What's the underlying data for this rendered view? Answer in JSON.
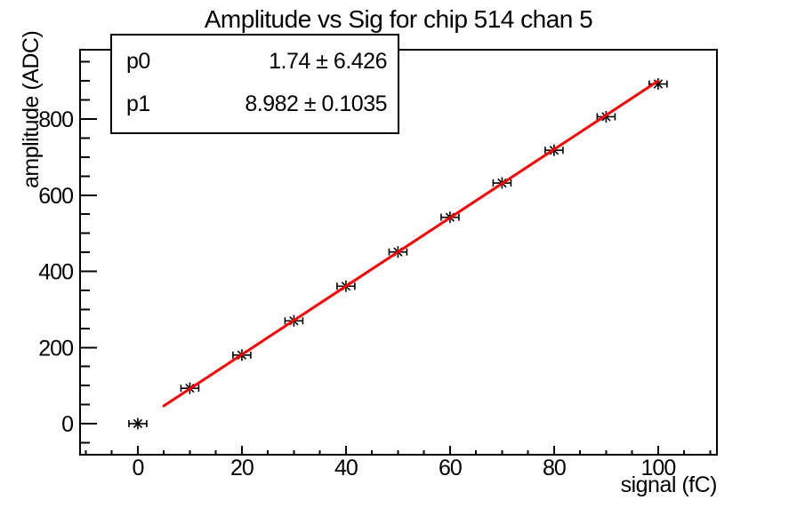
{
  "chart_data": {
    "type": "scatter",
    "title": "Amplitude vs Sig for chip 514 chan 5",
    "xlabel": "signal (fC)",
    "ylabel": "amplitude (ADC)",
    "x": [
      0,
      10,
      20,
      30,
      40,
      50,
      60,
      70,
      80,
      90,
      100
    ],
    "y": [
      0,
      93,
      180,
      270,
      361,
      451,
      542,
      632,
      718,
      806,
      892
    ],
    "xerr": 1.7,
    "xlim": [
      -11.1,
      111.3
    ],
    "ylim": [
      -81.6,
      982
    ],
    "x_major_ticks": [
      0,
      20,
      40,
      60,
      80,
      100
    ],
    "x_minor_step": 5,
    "y_major_ticks": [
      0,
      200,
      400,
      600,
      800
    ],
    "y_minor_step": 50,
    "grid": false,
    "legend_position": "none",
    "marker": "asterisk-with-x-error-bars",
    "colors": {
      "fit_line": "#ff0000",
      "marker": "#000000",
      "frame": "#000000",
      "background": "#ffffff"
    },
    "fit": {
      "p0": 1.74,
      "p1": 8.982,
      "range": [
        5,
        100
      ],
      "color": "#ff0000",
      "params": [
        {
          "name": "p0",
          "value": "1.74 ± 6.426"
        },
        {
          "name": "p1",
          "value": "8.982 ± 0.1035"
        }
      ]
    }
  }
}
